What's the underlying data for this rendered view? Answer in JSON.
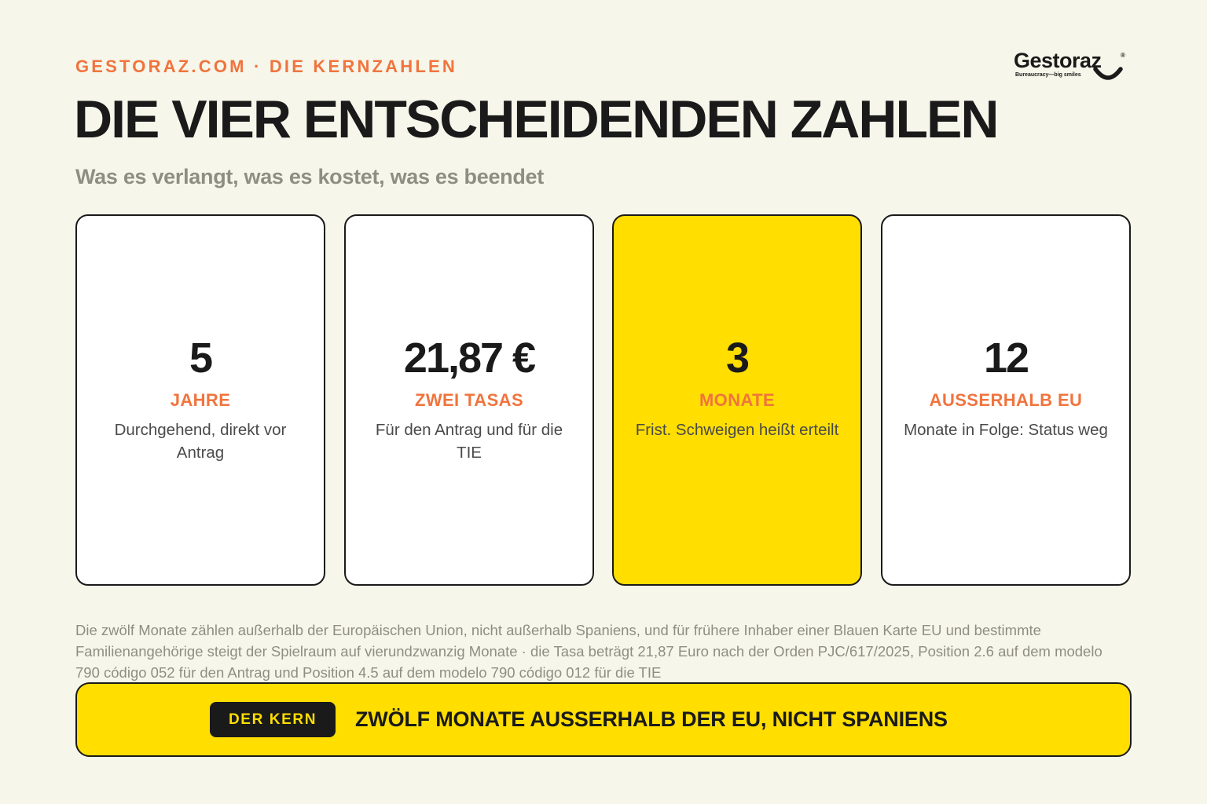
{
  "header": {
    "kicker": "GESTORAZ.COM · DIE KERNZAHLEN",
    "title": "DIE VIER ENTSCHEIDENDEN ZAHLEN",
    "subtitle": "Was es verlangt, was es kostet, was es beendet"
  },
  "logo": {
    "name": "Gestoraz",
    "registered": "®",
    "tagline": "Bureaucracy—big smiles",
    "icon": "smile-icon"
  },
  "cards": [
    {
      "value": "5",
      "label": "JAHRE",
      "desc": "Durchgehend, direkt vor Antrag",
      "highlight": false
    },
    {
      "value": "21,87 €",
      "label": "ZWEI TASAS",
      "desc": "Für den Antrag und für die TIE",
      "highlight": false
    },
    {
      "value": "3",
      "label": "MONATE",
      "desc": "Frist. Schweigen heißt erteilt",
      "highlight": true
    },
    {
      "value": "12",
      "label": "AUSSERHALB EU",
      "desc": "Monate in Folge: Status weg",
      "highlight": false
    }
  ],
  "footnote": "Die zwölf Monate zählen außerhalb der Europäischen Union, nicht außerhalb Spaniens, und für frühere Inhaber einer Blauen Karte EU und bestimmte Familienangehörige steigt der Spielraum auf vierundzwanzig Monate · die Tasa beträgt 21,87 Euro nach der Orden PJC/617/2025, Position 2.6 auf dem modelo 790 código 052 für den Antrag und Position 4.5 auf dem modelo 790 código 012 für die TIE",
  "banner": {
    "badge": "DER KERN",
    "text": "ZWÖLF MONATE AUSSERHALB DER EU, NICHT SPANIENS"
  },
  "colors": {
    "background": "#f7f6ea",
    "accent_orange": "#f0743e",
    "highlight_yellow": "#ffde00",
    "ink": "#1a1a1a",
    "muted": "#8e8e82"
  }
}
